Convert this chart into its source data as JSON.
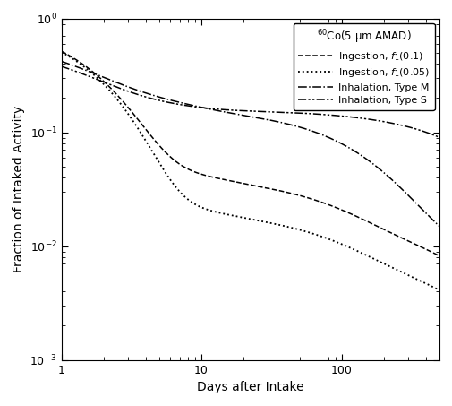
{
  "xlabel": "Days after Intake",
  "ylabel": "Fraction of Intaked Activity",
  "xlim": [
    1,
    500
  ],
  "ylim": [
    0.001,
    1.0
  ],
  "legend_title": "$^{60}$Co(5 μm AMAD)",
  "legend_entries": [
    "Ingestion, $f_1$(0.1)",
    "Ingestion, $f_1$(0.05)",
    "Inhalation, Type M",
    "Inhalation, Type S"
  ],
  "background_color": "white",
  "figsize": [
    5.05,
    4.53
  ],
  "dpi": 100
}
